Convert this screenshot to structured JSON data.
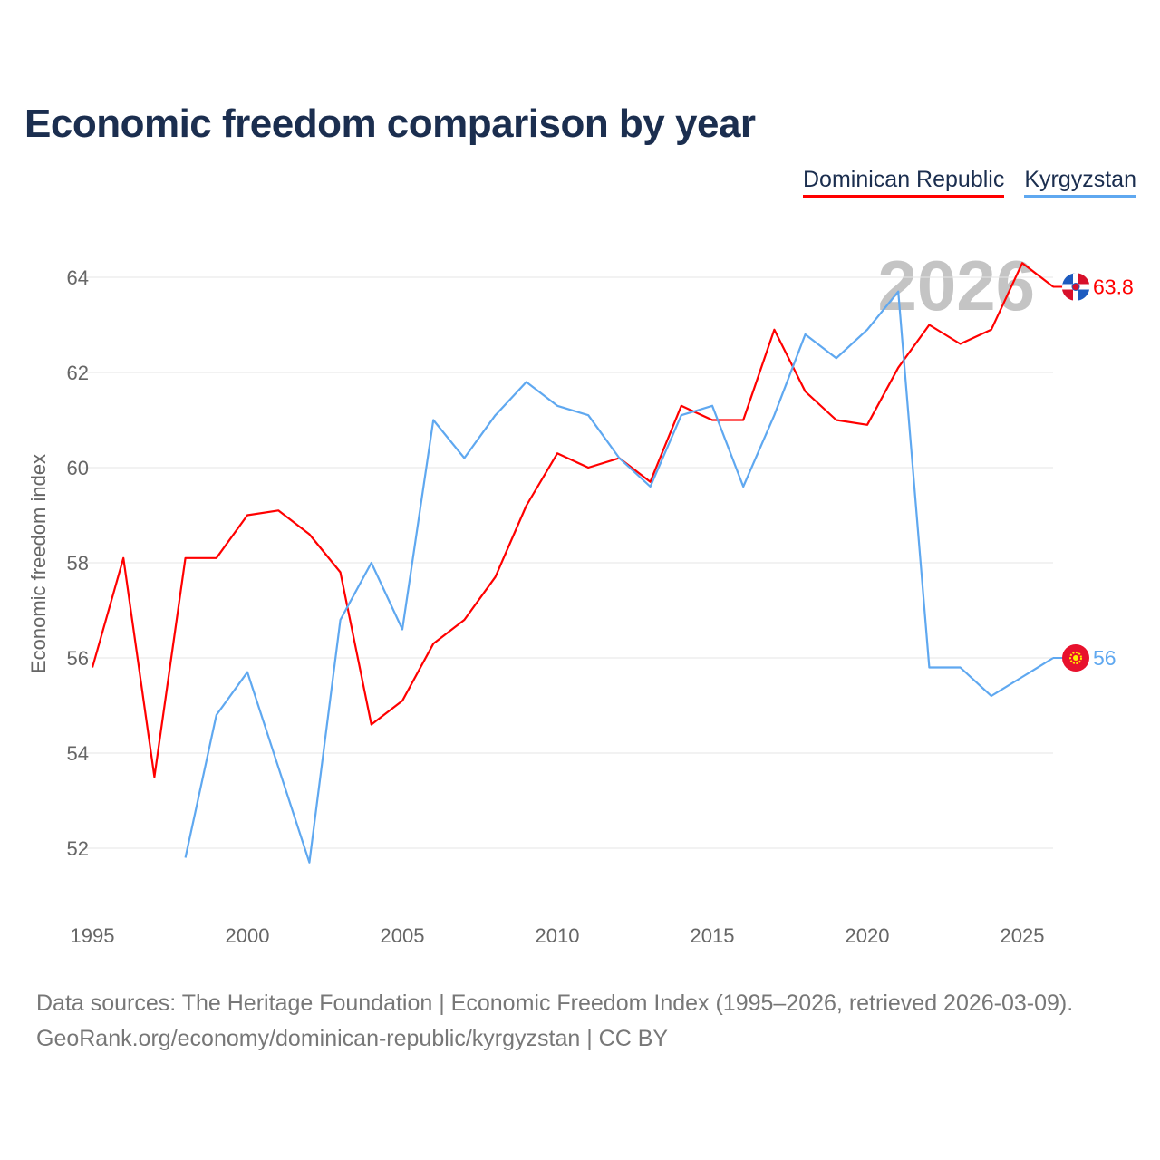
{
  "title": "Economic freedom comparison by year",
  "footer": {
    "line1": "Data sources: The Heritage Foundation | Economic Freedom Index (1995–2026, retrieved 2026-03-09).",
    "line2": "GeoRank.org/economy/dominican-republic/kyrgyzstan | CC BY"
  },
  "chart_data": {
    "type": "line",
    "title": "Economic freedom comparison by year",
    "xlabel": "",
    "ylabel": "Economic freedom index",
    "watermark_year": "2026",
    "xlim": [
      1995,
      2026
    ],
    "ylim": [
      51,
      65
    ],
    "x_ticks": [
      "1995",
      "2000",
      "2005",
      "2010",
      "2015",
      "2020",
      "2025"
    ],
    "y_ticks": [
      "52",
      "54",
      "56",
      "58",
      "60",
      "62",
      "64"
    ],
    "grid": true,
    "legend_position": "top-right",
    "series": [
      {
        "name": "Dominican Republic",
        "color": "#ff0000",
        "end_label": "63.8",
        "flag": "dominican-republic-flag-icon",
        "x": [
          1995,
          1996,
          1997,
          1998,
          1999,
          2000,
          2001,
          2002,
          2003,
          2004,
          2005,
          2006,
          2007,
          2008,
          2009,
          2010,
          2011,
          2012,
          2013,
          2014,
          2015,
          2016,
          2017,
          2018,
          2019,
          2020,
          2021,
          2022,
          2023,
          2024,
          2025,
          2026
        ],
        "values": [
          55.8,
          58.1,
          53.5,
          58.1,
          58.1,
          59.0,
          59.1,
          58.6,
          57.8,
          54.6,
          55.1,
          56.3,
          56.8,
          57.7,
          59.2,
          60.3,
          60.0,
          60.2,
          59.7,
          61.3,
          61.0,
          61.0,
          62.9,
          61.6,
          61.0,
          60.9,
          62.1,
          63.0,
          62.6,
          62.9,
          64.3,
          63.8
        ]
      },
      {
        "name": "Kyrgyzstan",
        "color": "#5fa8f0",
        "end_label": "56",
        "flag": "kyrgyzstan-flag-icon",
        "x": [
          1998,
          1999,
          2000,
          2001,
          2002,
          2003,
          2004,
          2005,
          2006,
          2007,
          2008,
          2009,
          2010,
          2011,
          2012,
          2013,
          2014,
          2015,
          2016,
          2017,
          2018,
          2019,
          2020,
          2021,
          2022,
          2023,
          2024,
          2025,
          2026
        ],
        "values": [
          51.8,
          54.8,
          55.7,
          53.7,
          51.7,
          56.8,
          58.0,
          56.6,
          61.0,
          60.2,
          61.1,
          61.8,
          61.3,
          61.1,
          60.2,
          59.6,
          61.1,
          61.3,
          59.6,
          61.1,
          62.8,
          62.3,
          62.9,
          63.7,
          55.8,
          55.8,
          55.2,
          55.6,
          56.0
        ]
      }
    ]
  }
}
